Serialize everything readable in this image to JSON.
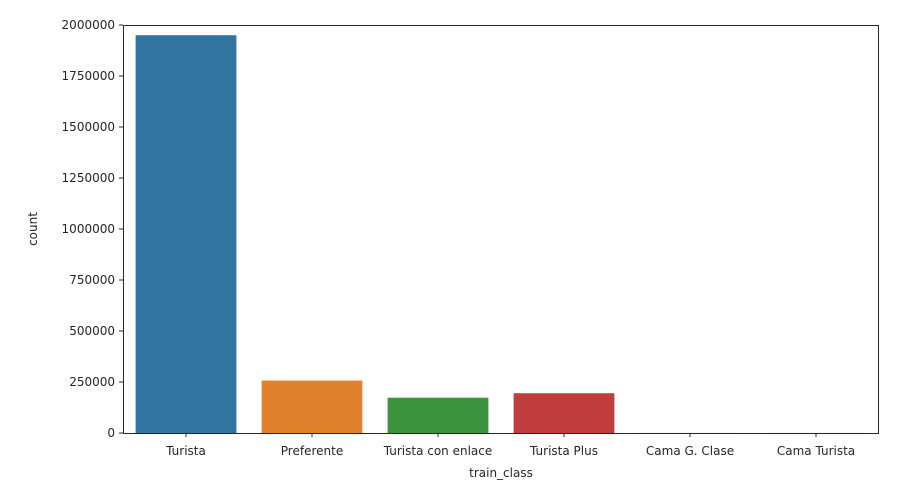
{
  "chart_data": {
    "type": "bar",
    "categories": [
      "Turista",
      "Preferente",
      "Turista con enlace",
      "Turista Plus",
      "Cama G. Clase",
      "Cama Turista"
    ],
    "values": [
      1950000,
      257000,
      173000,
      195000,
      300,
      200
    ],
    "colors": [
      "#3274a1",
      "#e1812c",
      "#3a923a",
      "#c03d3e",
      "#9372b2",
      "#845b53"
    ],
    "xlabel": "train_class",
    "ylabel": "count",
    "ylim": [
      0,
      2000000
    ],
    "yticks": [
      0,
      250000,
      500000,
      750000,
      1000000,
      1250000,
      1500000,
      1750000,
      2000000
    ],
    "grid": false,
    "legend": "none"
  }
}
